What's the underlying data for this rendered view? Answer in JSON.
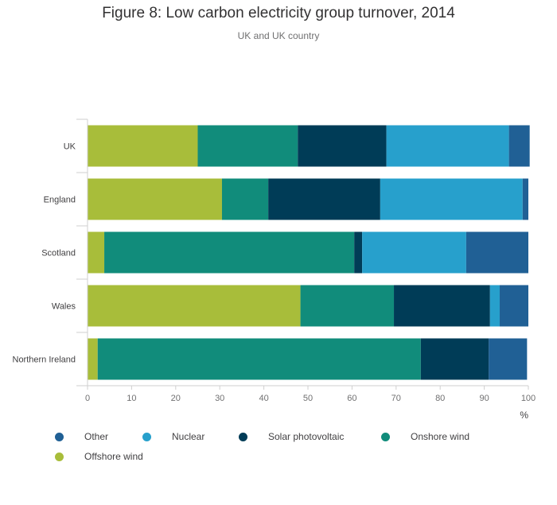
{
  "chart_data": {
    "type": "bar",
    "orientation": "horizontal",
    "stacked": true,
    "title": "Figure 8: Low carbon electricity group turnover, 2014",
    "subtitle": "UK and UK country",
    "categories": [
      "UK",
      "England",
      "Scotland",
      "Wales",
      "Northern Ireland"
    ],
    "series": [
      {
        "name": "Offshore wind",
        "color": "#a8bd3a",
        "values": [
          25,
          30.5,
          3.8,
          48.3,
          2.3
        ]
      },
      {
        "name": "Onshore wind",
        "color": "#118c7b",
        "values": [
          22.7,
          10.5,
          56.7,
          21.2,
          73.3
        ]
      },
      {
        "name": "Solar photovoltaic",
        "color": "#003c57",
        "values": [
          20.1,
          25.4,
          1.8,
          21.8,
          15.4
        ]
      },
      {
        "name": "Nuclear",
        "color": "#27a0cc",
        "values": [
          27.8,
          32.3,
          23.6,
          2.2,
          0
        ]
      },
      {
        "name": "Other",
        "color": "#206095",
        "values": [
          4.7,
          1.3,
          14.1,
          6.5,
          8.7
        ]
      }
    ],
    "xlim": [
      0,
      100
    ],
    "xticks": [
      "0",
      "10",
      "20",
      "30",
      "40",
      "50",
      "60",
      "70",
      "80",
      "90",
      "100"
    ],
    "xlabel": "%",
    "legend_order": [
      "Other",
      "Nuclear",
      "Solar photovoltaic",
      "Onshore wind",
      "Offshore wind"
    ]
  }
}
